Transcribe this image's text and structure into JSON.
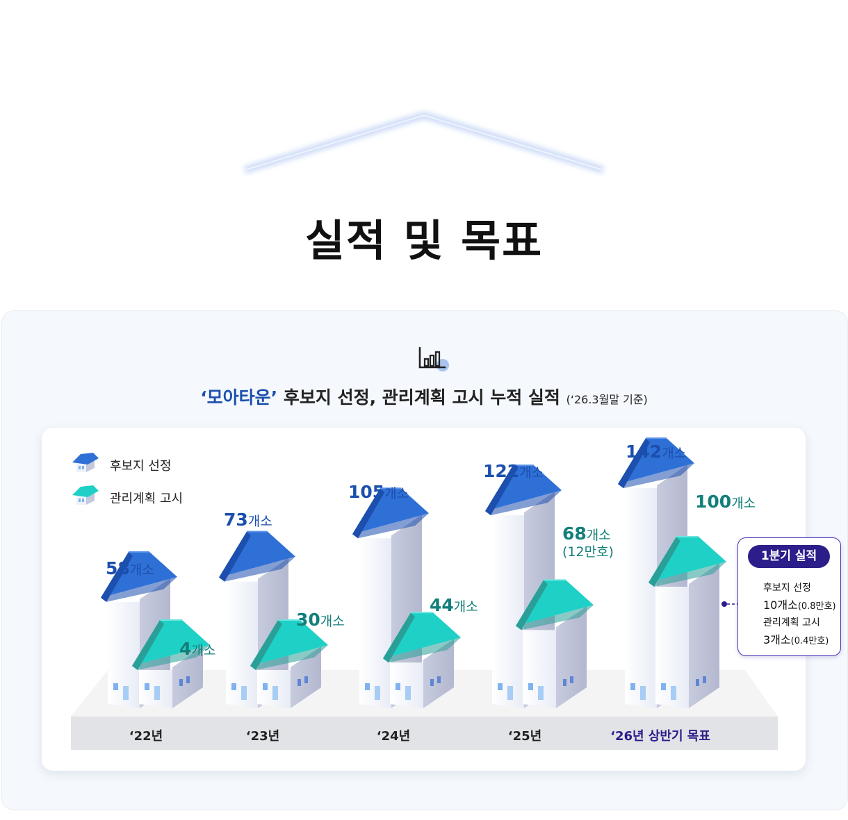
{
  "page_title": "실적 및 목표",
  "heading": {
    "highlight": "‘모아타운’",
    "rest": " 후보지 선정, 관리계획 고시 누적 실적",
    "basis": "(‘26.3월말 기준)"
  },
  "icons": {
    "header": "bar-chart-icon",
    "series_blue": "blue-roof-house-icon",
    "series_teal": "teal-roof-house-icon"
  },
  "colors": {
    "blue": "#1b4fae",
    "teal": "#137f7a",
    "target": "#2b1d8a"
  },
  "legend": [
    "후보지 선정",
    "관리계획 고시"
  ],
  "chart_data": {
    "type": "bar",
    "categories": [
      "‘22년",
      "‘23년",
      "‘24년",
      "‘25년",
      "‘26년 상반기 목표"
    ],
    "series": [
      {
        "name": "후보지 선정",
        "values": [
          58,
          73,
          105,
          122,
          142
        ]
      },
      {
        "name": "관리계획 고시",
        "values": [
          4,
          30,
          44,
          68,
          100
        ]
      }
    ],
    "unit": "개소",
    "annotations": {
      "관리계획 고시 ‘25년": "(12만호)"
    },
    "legend_position": "top-left"
  },
  "labels": {
    "blue": [
      "58",
      "73",
      "105",
      "122",
      "142"
    ],
    "teal": [
      "4",
      "30",
      "44",
      "68",
      "100"
    ],
    "unit": "개소",
    "teal_note_25": "(12만호)"
  },
  "quarter": {
    "title": "1분기 실적",
    "item1_label": "후보지 선정",
    "item1_value": "10개소",
    "item1_note": "(0.8만호)",
    "item2_label": "관리계획 고시",
    "item2_value": "3개소",
    "item2_note": "(0.4만호)"
  }
}
